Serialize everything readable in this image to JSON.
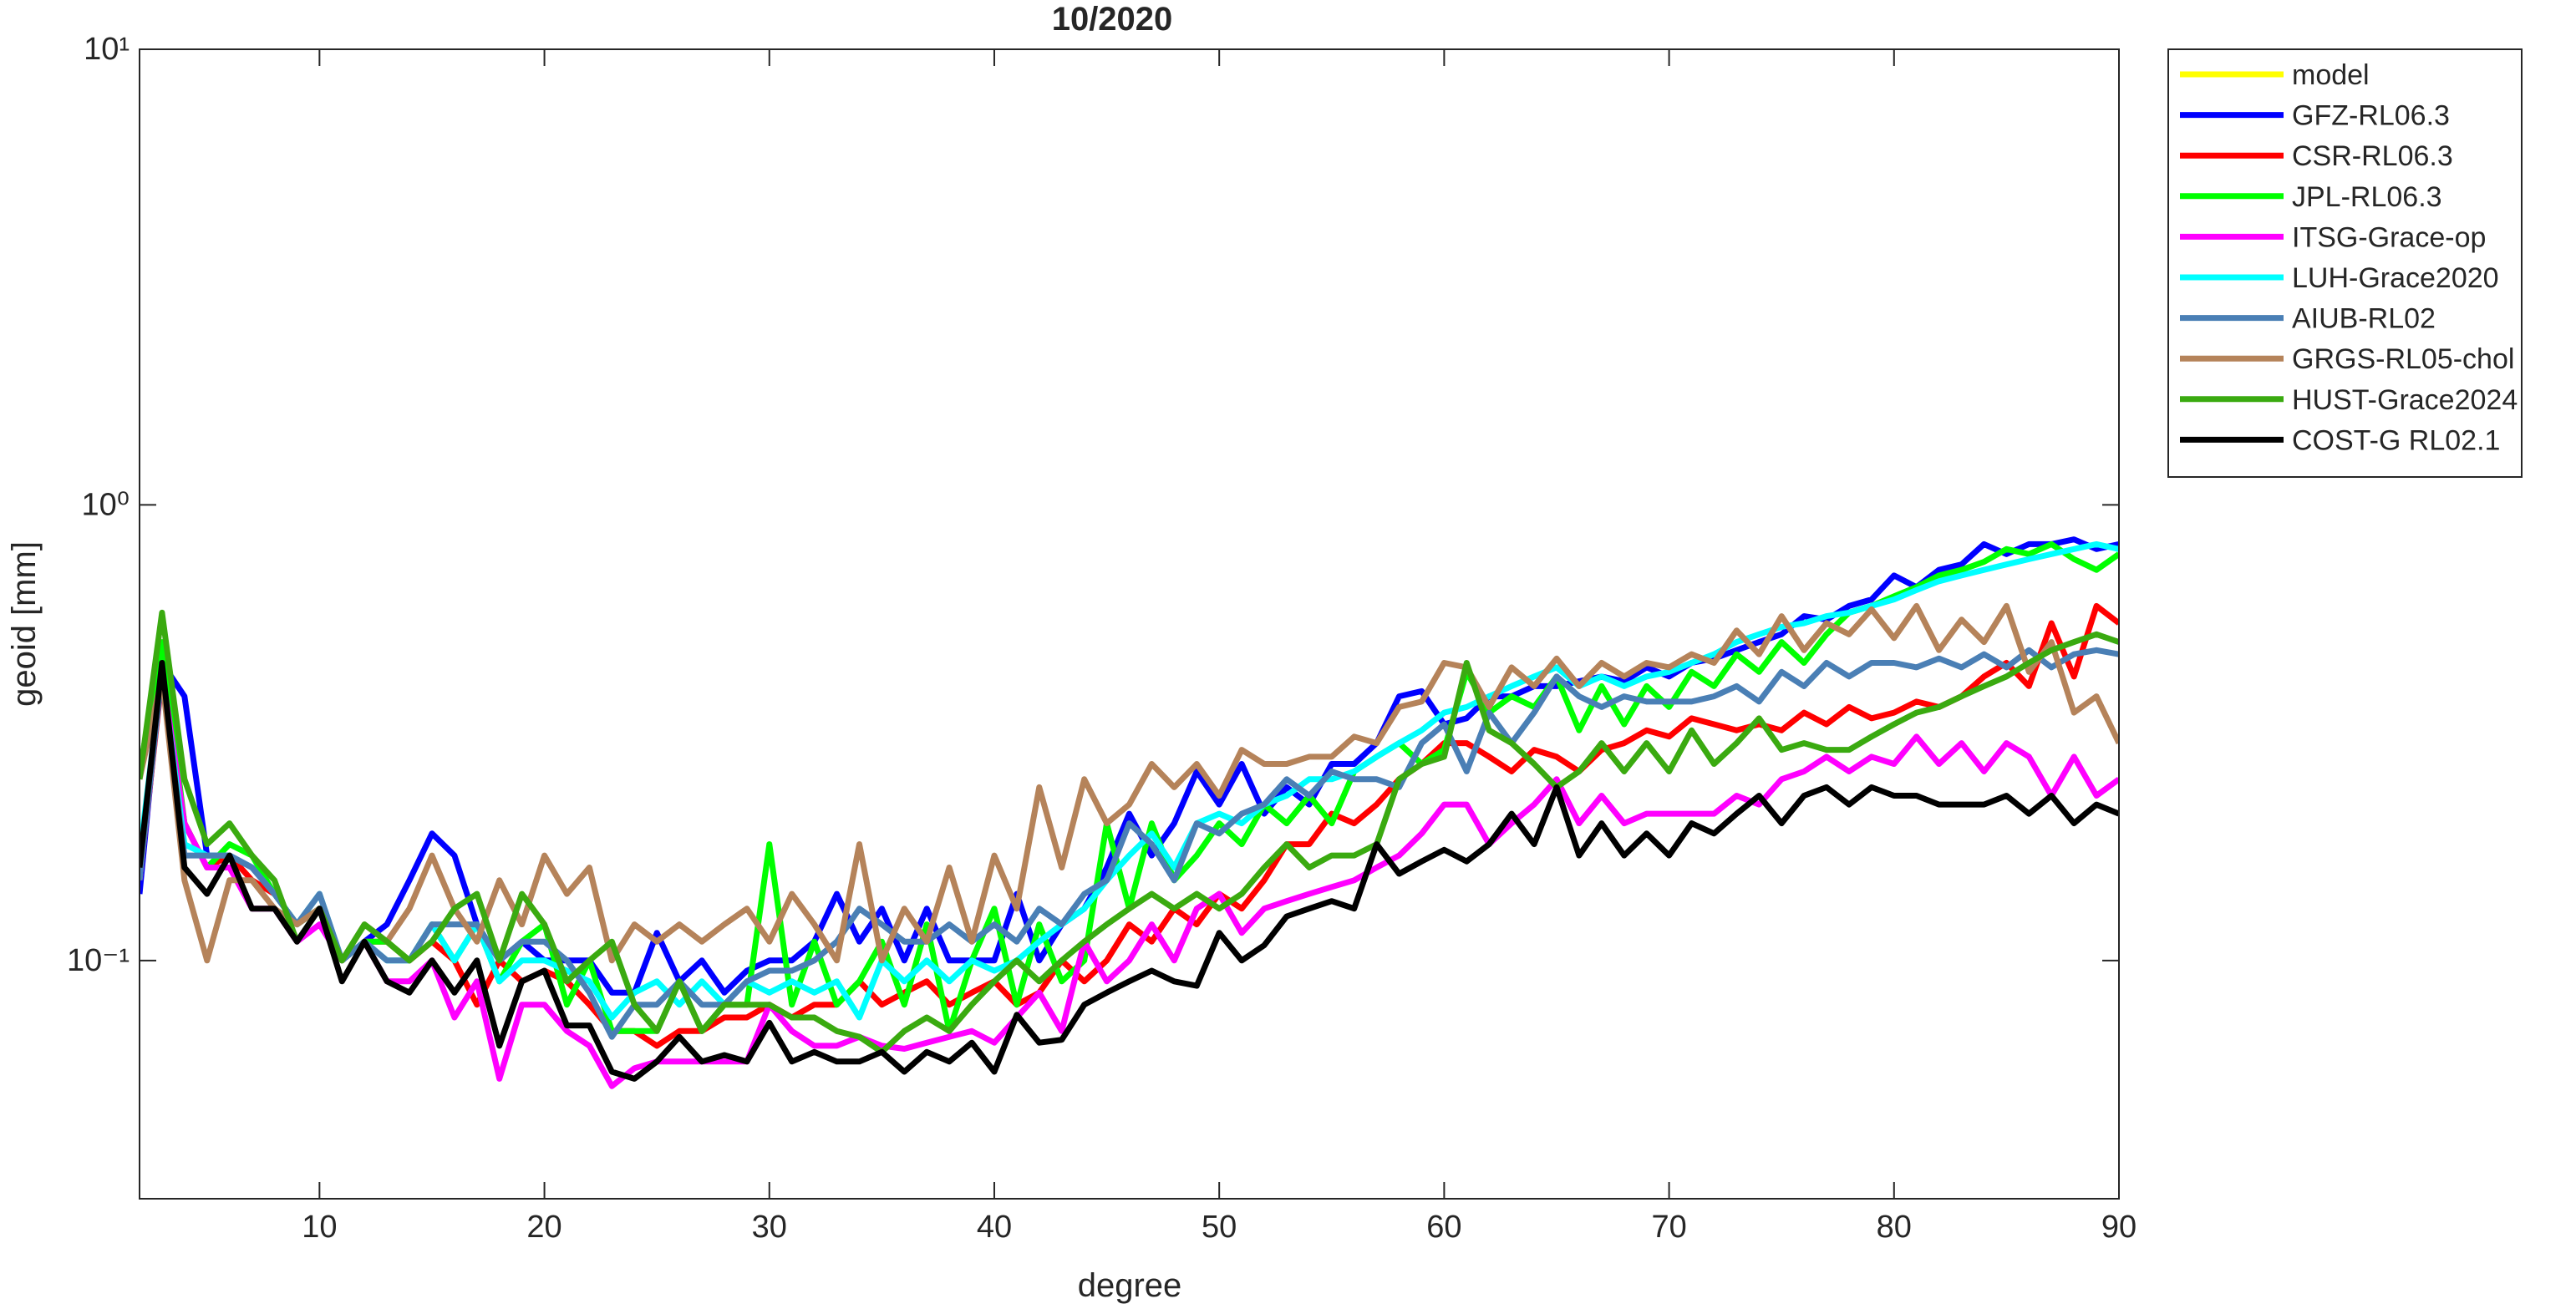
{
  "chart_data": {
    "type": "line",
    "title": "10/2020",
    "xlabel": "degree",
    "ylabel": "geoid [mm]",
    "yscale": "log",
    "grid": false,
    "legend": "outside right",
    "xlim": [
      2,
      90
    ],
    "xticks": [
      10,
      20,
      30,
      40,
      50,
      60,
      70,
      80,
      90
    ],
    "ylim": [
      0.03,
      10
    ],
    "yticks": [
      {
        "value": 0.1,
        "label": "10⁻¹"
      },
      {
        "value": 1,
        "label": "10⁰"
      },
      {
        "value": 10,
        "label": "10¹"
      }
    ],
    "x": [
      2,
      3,
      4,
      5,
      6,
      7,
      8,
      9,
      10,
      11,
      12,
      13,
      14,
      15,
      16,
      17,
      18,
      19,
      20,
      21,
      22,
      23,
      24,
      25,
      26,
      27,
      28,
      29,
      30,
      31,
      32,
      33,
      34,
      35,
      36,
      37,
      38,
      39,
      40,
      41,
      42,
      43,
      44,
      45,
      46,
      47,
      48,
      49,
      50,
      51,
      52,
      53,
      54,
      55,
      56,
      57,
      58,
      59,
      60,
      61,
      62,
      63,
      64,
      65,
      66,
      67,
      68,
      69,
      70,
      71,
      72,
      73,
      74,
      75,
      76,
      77,
      78,
      79,
      80,
      81,
      82,
      83,
      84,
      85,
      86,
      87,
      88,
      89,
      90
    ],
    "series": [
      {
        "name": "model",
        "color": "#ffff00",
        "values": [
          null,
          null,
          null,
          null,
          null,
          null,
          null,
          null,
          null,
          null,
          null,
          null,
          null,
          null,
          null,
          null,
          null,
          null,
          null,
          null,
          null,
          null,
          null,
          null,
          null,
          null,
          null,
          null,
          null,
          null,
          null,
          null,
          null,
          null,
          null,
          null,
          null,
          null,
          null,
          null,
          null,
          null,
          null,
          null,
          null,
          null,
          null,
          null,
          null,
          null,
          null,
          null,
          null,
          null,
          null,
          null,
          null,
          null,
          null,
          null,
          null,
          null,
          null,
          null,
          null,
          null,
          null,
          null,
          null,
          null,
          null,
          null,
          null,
          null,
          null,
          null,
          null,
          null,
          null,
          null,
          null,
          null,
          null,
          null,
          null,
          null,
          null,
          null,
          null
        ]
      },
      {
        "name": "GFZ-RL06.3",
        "color": "#0000ff",
        "values": [
          0.14,
          0.45,
          0.38,
          0.17,
          0.17,
          0.16,
          0.14,
          0.12,
          0.13,
          0.1,
          0.11,
          0.12,
          0.15,
          0.19,
          0.17,
          0.12,
          0.1,
          0.11,
          0.1,
          0.1,
          0.1,
          0.085,
          0.085,
          0.115,
          0.09,
          0.1,
          0.085,
          0.095,
          0.1,
          0.1,
          0.11,
          0.14,
          0.11,
          0.13,
          0.1,
          0.13,
          0.1,
          0.1,
          0.1,
          0.14,
          0.1,
          0.12,
          0.13,
          0.16,
          0.21,
          0.17,
          0.2,
          0.26,
          0.22,
          0.27,
          0.21,
          0.24,
          0.22,
          0.27,
          0.27,
          0.3,
          0.38,
          0.39,
          0.33,
          0.34,
          0.38,
          0.38,
          0.4,
          0.4,
          0.41,
          0.42,
          0.41,
          0.44,
          0.42,
          0.45,
          0.46,
          0.48,
          0.5,
          0.52,
          0.57,
          0.56,
          0.6,
          0.62,
          0.7,
          0.66,
          0.72,
          0.74,
          0.82,
          0.78,
          0.82,
          0.82,
          0.84,
          0.8,
          0.82
        ]
      },
      {
        "name": "CSR-RL06.3",
        "color": "#ff0000",
        "values": [
          0.15,
          0.42,
          0.2,
          0.16,
          0.17,
          0.15,
          0.14,
          0.12,
          0.13,
          0.1,
          0.11,
          0.11,
          0.1,
          0.11,
          0.1,
          0.08,
          0.1,
          0.09,
          0.095,
          0.09,
          0.08,
          0.07,
          0.07,
          0.065,
          0.07,
          0.07,
          0.075,
          0.075,
          0.08,
          0.075,
          0.08,
          0.08,
          0.09,
          0.08,
          0.085,
          0.09,
          0.08,
          0.085,
          0.09,
          0.08,
          0.085,
          0.1,
          0.09,
          0.1,
          0.12,
          0.11,
          0.13,
          0.12,
          0.14,
          0.13,
          0.15,
          0.18,
          0.18,
          0.21,
          0.2,
          0.22,
          0.25,
          0.27,
          0.3,
          0.3,
          0.28,
          0.26,
          0.29,
          0.28,
          0.26,
          0.29,
          0.3,
          0.32,
          0.31,
          0.34,
          0.33,
          0.32,
          0.33,
          0.32,
          0.35,
          0.33,
          0.36,
          0.34,
          0.35,
          0.37,
          0.36,
          0.38,
          0.42,
          0.45,
          0.4,
          0.55,
          0.42,
          0.6,
          0.55
        ]
      },
      {
        "name": "JPL-RL06.3",
        "color": "#00ff00",
        "values": [
          0.26,
          0.5,
          0.2,
          0.16,
          0.18,
          0.17,
          0.14,
          0.12,
          0.13,
          0.1,
          0.11,
          0.11,
          0.1,
          0.12,
          0.1,
          0.12,
          0.09,
          0.11,
          0.12,
          0.08,
          0.1,
          0.07,
          0.07,
          0.07,
          0.09,
          0.07,
          0.08,
          0.08,
          0.18,
          0.08,
          0.11,
          0.08,
          0.09,
          0.11,
          0.08,
          0.12,
          0.07,
          0.1,
          0.13,
          0.08,
          0.12,
          0.09,
          0.1,
          0.2,
          0.13,
          0.2,
          0.15,
          0.17,
          0.2,
          0.18,
          0.22,
          0.2,
          0.23,
          0.2,
          0.26,
          0.28,
          0.3,
          0.27,
          0.29,
          0.43,
          0.35,
          0.38,
          0.36,
          0.42,
          0.32,
          0.4,
          0.33,
          0.4,
          0.36,
          0.43,
          0.4,
          0.47,
          0.43,
          0.5,
          0.45,
          0.52,
          0.58,
          0.6,
          0.63,
          0.66,
          0.7,
          0.72,
          0.75,
          0.8,
          0.78,
          0.82,
          0.76,
          0.72,
          0.78
        ]
      },
      {
        "name": "ITSG-Grace-op",
        "color": "#ff00ff",
        "values": [
          0.15,
          0.43,
          0.2,
          0.16,
          0.16,
          0.13,
          0.13,
          0.11,
          0.12,
          0.1,
          0.11,
          0.09,
          0.09,
          0.1,
          0.075,
          0.09,
          0.055,
          0.08,
          0.08,
          0.07,
          0.065,
          0.053,
          0.058,
          0.06,
          0.06,
          0.06,
          0.06,
          0.06,
          0.08,
          0.07,
          0.065,
          0.065,
          0.068,
          0.065,
          0.064,
          0.066,
          0.068,
          0.07,
          0.066,
          0.075,
          0.085,
          0.07,
          0.11,
          0.09,
          0.1,
          0.12,
          0.1,
          0.13,
          0.14,
          0.115,
          0.13,
          0.135,
          0.14,
          0.145,
          0.15,
          0.16,
          0.17,
          0.19,
          0.22,
          0.22,
          0.18,
          0.2,
          0.22,
          0.25,
          0.2,
          0.23,
          0.2,
          0.21,
          0.21,
          0.21,
          0.21,
          0.23,
          0.22,
          0.25,
          0.26,
          0.28,
          0.26,
          0.28,
          0.27,
          0.31,
          0.27,
          0.3,
          0.26,
          0.3,
          0.28,
          0.23,
          0.28,
          0.23,
          0.25
        ]
      },
      {
        "name": "LUH-Grace2020",
        "color": "#00ffff",
        "values": [
          0.17,
          0.43,
          0.18,
          0.17,
          0.17,
          0.16,
          0.14,
          0.12,
          0.14,
          0.1,
          0.11,
          0.1,
          0.1,
          0.12,
          0.1,
          0.12,
          0.09,
          0.1,
          0.1,
          0.095,
          0.09,
          0.075,
          0.085,
          0.09,
          0.08,
          0.09,
          0.08,
          0.09,
          0.085,
          0.09,
          0.085,
          0.09,
          0.075,
          0.1,
          0.09,
          0.1,
          0.09,
          0.1,
          0.095,
          0.1,
          0.11,
          0.12,
          0.13,
          0.15,
          0.17,
          0.19,
          0.16,
          0.2,
          0.21,
          0.2,
          0.22,
          0.23,
          0.25,
          0.25,
          0.26,
          0.28,
          0.3,
          0.32,
          0.35,
          0.36,
          0.38,
          0.4,
          0.42,
          0.44,
          0.4,
          0.42,
          0.4,
          0.42,
          0.43,
          0.45,
          0.47,
          0.5,
          0.52,
          0.54,
          0.55,
          0.57,
          0.58,
          0.6,
          0.62,
          0.65,
          0.68,
          0.7,
          0.72,
          0.74,
          0.76,
          0.78,
          0.8,
          0.82,
          0.8
        ]
      },
      {
        "name": "AIUB-RL02",
        "color": "#4a7fb5",
        "values": [
          0.15,
          0.43,
          0.17,
          0.17,
          0.17,
          0.16,
          0.14,
          0.12,
          0.14,
          0.1,
          0.11,
          0.1,
          0.1,
          0.12,
          0.12,
          0.12,
          0.1,
          0.11,
          0.11,
          0.1,
          0.085,
          0.068,
          0.08,
          0.08,
          0.09,
          0.08,
          0.08,
          0.09,
          0.095,
          0.095,
          0.1,
          0.11,
          0.13,
          0.12,
          0.11,
          0.11,
          0.12,
          0.11,
          0.12,
          0.11,
          0.13,
          0.12,
          0.14,
          0.15,
          0.2,
          0.18,
          0.15,
          0.2,
          0.19,
          0.21,
          0.22,
          0.25,
          0.23,
          0.26,
          0.25,
          0.25,
          0.24,
          0.3,
          0.33,
          0.26,
          0.35,
          0.3,
          0.35,
          0.42,
          0.38,
          0.36,
          0.38,
          0.37,
          0.37,
          0.37,
          0.38,
          0.4,
          0.37,
          0.43,
          0.4,
          0.45,
          0.42,
          0.45,
          0.45,
          0.44,
          0.46,
          0.44,
          0.47,
          0.44,
          0.48,
          0.44,
          0.47,
          0.48,
          0.47
        ]
      },
      {
        "name": "GRGS-RL05-chol",
        "color": "#b5835a",
        "values": [
          0.25,
          0.42,
          0.15,
          0.1,
          0.15,
          0.15,
          0.13,
          0.12,
          0.13,
          0.1,
          0.12,
          0.11,
          0.13,
          0.17,
          0.13,
          0.11,
          0.15,
          0.12,
          0.17,
          0.14,
          0.16,
          0.1,
          0.12,
          0.11,
          0.12,
          0.11,
          0.12,
          0.13,
          0.11,
          0.14,
          0.12,
          0.1,
          0.18,
          0.1,
          0.13,
          0.11,
          0.16,
          0.11,
          0.17,
          0.13,
          0.24,
          0.16,
          0.25,
          0.2,
          0.22,
          0.27,
          0.24,
          0.27,
          0.23,
          0.29,
          0.27,
          0.27,
          0.28,
          0.28,
          0.31,
          0.3,
          0.36,
          0.37,
          0.45,
          0.44,
          0.36,
          0.44,
          0.4,
          0.46,
          0.4,
          0.45,
          0.42,
          0.45,
          0.44,
          0.47,
          0.45,
          0.53,
          0.47,
          0.57,
          0.48,
          0.55,
          0.52,
          0.59,
          0.51,
          0.6,
          0.48,
          0.56,
          0.5,
          0.6,
          0.43,
          0.5,
          0.35,
          0.38,
          0.3
        ]
      },
      {
        "name": "HUST-Grace2024",
        "color": "#3aaa10",
        "values": [
          0.25,
          0.58,
          0.25,
          0.18,
          0.2,
          0.17,
          0.15,
          0.11,
          0.13,
          0.1,
          0.12,
          0.11,
          0.1,
          0.11,
          0.13,
          0.14,
          0.1,
          0.14,
          0.12,
          0.09,
          0.1,
          0.11,
          0.08,
          0.07,
          0.09,
          0.07,
          0.08,
          0.08,
          0.08,
          0.075,
          0.075,
          0.07,
          0.068,
          0.063,
          0.07,
          0.075,
          0.07,
          0.08,
          0.09,
          0.1,
          0.09,
          0.1,
          0.11,
          0.12,
          0.13,
          0.14,
          0.13,
          0.14,
          0.13,
          0.14,
          0.16,
          0.18,
          0.16,
          0.17,
          0.17,
          0.18,
          0.25,
          0.27,
          0.28,
          0.45,
          0.32,
          0.3,
          0.27,
          0.24,
          0.26,
          0.3,
          0.26,
          0.3,
          0.26,
          0.32,
          0.27,
          0.3,
          0.34,
          0.29,
          0.3,
          0.29,
          0.29,
          0.31,
          0.33,
          0.35,
          0.36,
          0.38,
          0.4,
          0.42,
          0.45,
          0.48,
          0.5,
          0.52,
          0.5
        ]
      },
      {
        "name": "COST-G RL02.1",
        "color": "#000000",
        "values": [
          0.16,
          0.45,
          0.16,
          0.14,
          0.17,
          0.13,
          0.13,
          0.11,
          0.13,
          0.09,
          0.11,
          0.09,
          0.085,
          0.1,
          0.085,
          0.1,
          0.065,
          0.09,
          0.095,
          0.072,
          0.072,
          0.057,
          0.055,
          0.06,
          0.068,
          0.06,
          0.062,
          0.06,
          0.073,
          0.06,
          0.063,
          0.06,
          0.06,
          0.063,
          0.057,
          0.063,
          0.06,
          0.066,
          0.057,
          0.076,
          0.066,
          0.067,
          0.08,
          0.085,
          0.09,
          0.095,
          0.09,
          0.088,
          0.115,
          0.1,
          0.108,
          0.125,
          0.13,
          0.135,
          0.13,
          0.18,
          0.155,
          0.165,
          0.175,
          0.165,
          0.18,
          0.21,
          0.18,
          0.24,
          0.17,
          0.2,
          0.17,
          0.19,
          0.17,
          0.2,
          0.19,
          0.21,
          0.23,
          0.2,
          0.23,
          0.24,
          0.22,
          0.24,
          0.23,
          0.23,
          0.22,
          0.22,
          0.22,
          0.23,
          0.21,
          0.23,
          0.2,
          0.22,
          0.21
        ]
      }
    ]
  }
}
